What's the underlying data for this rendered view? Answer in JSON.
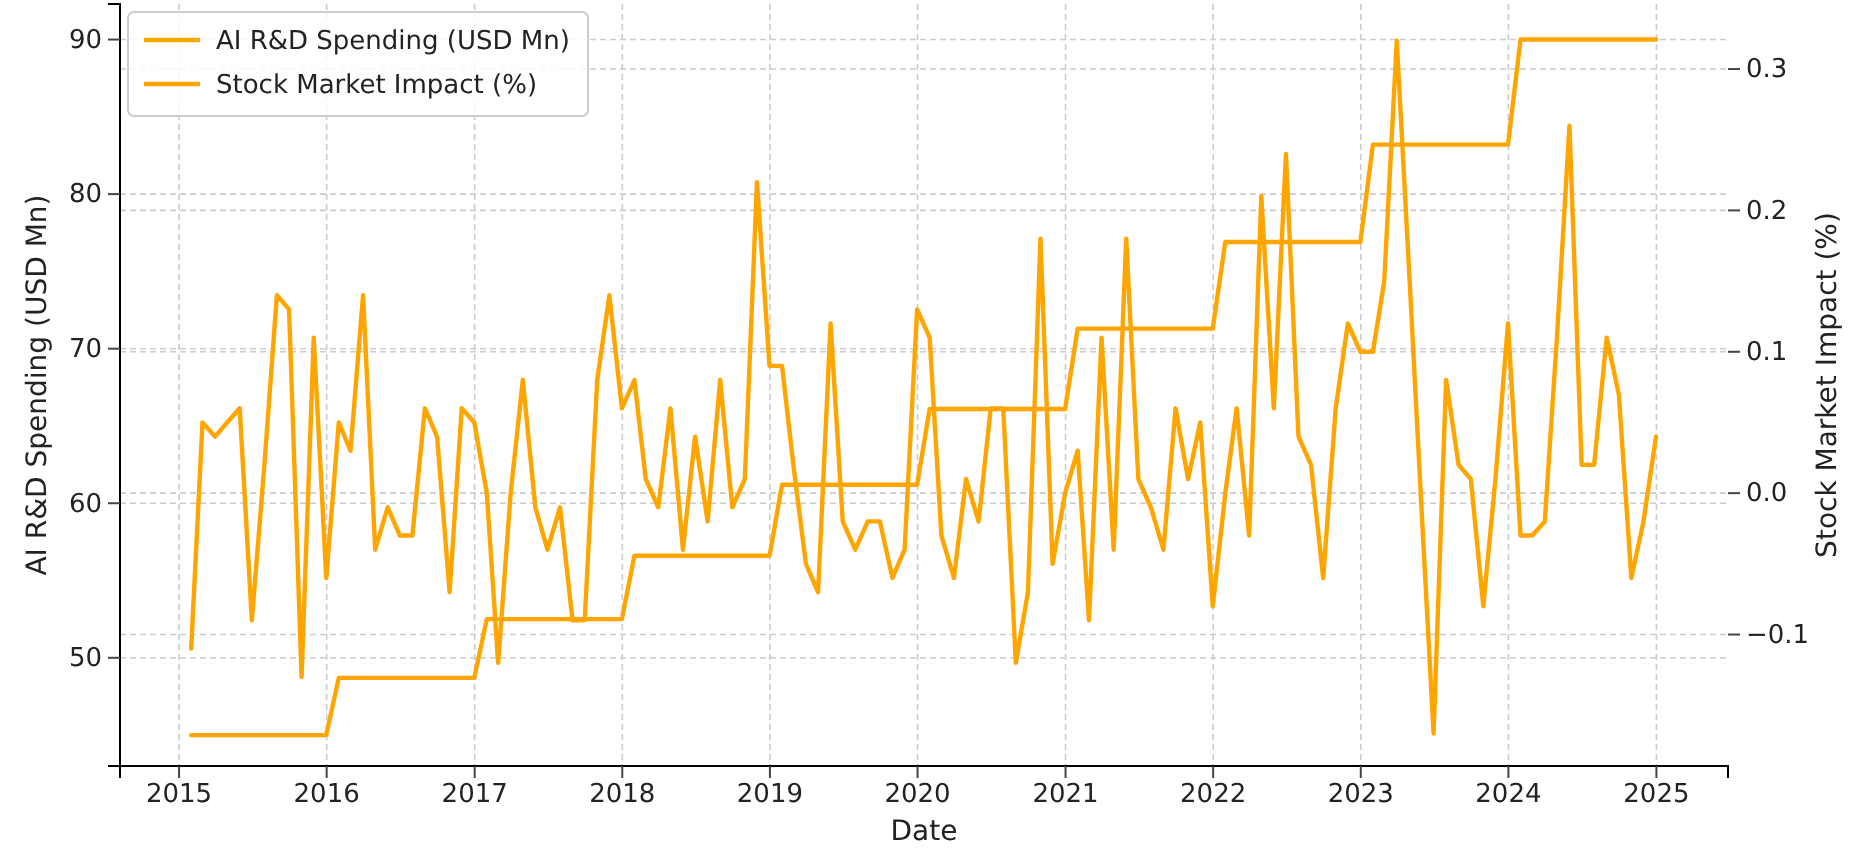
{
  "chart_data": {
    "type": "line",
    "xlabel": "Date",
    "ylabel": "AI R&D Spending (USD Mn)",
    "y2label": "Stock Market Impact (%)",
    "x": [
      "2015-01-31",
      "2015-02-28",
      "2015-03-31",
      "2015-04-30",
      "2015-05-31",
      "2015-06-30",
      "2015-07-31",
      "2015-08-31",
      "2015-09-30",
      "2015-10-31",
      "2015-11-30",
      "2015-12-31",
      "2016-01-31",
      "2016-02-29",
      "2016-03-31",
      "2016-04-30",
      "2016-05-31",
      "2016-06-30",
      "2016-07-31",
      "2016-08-31",
      "2016-09-30",
      "2016-10-31",
      "2016-11-30",
      "2016-12-31",
      "2017-01-31",
      "2017-02-28",
      "2017-03-31",
      "2017-04-30",
      "2017-05-31",
      "2017-06-30",
      "2017-07-31",
      "2017-08-31",
      "2017-09-30",
      "2017-10-31",
      "2017-11-30",
      "2017-12-31",
      "2018-01-31",
      "2018-02-28",
      "2018-03-31",
      "2018-04-30",
      "2018-05-31",
      "2018-06-30",
      "2018-07-31",
      "2018-08-31",
      "2018-09-30",
      "2018-10-31",
      "2018-11-30",
      "2018-12-31",
      "2019-01-31",
      "2019-02-28",
      "2019-03-31",
      "2019-04-30",
      "2019-05-31",
      "2019-06-30",
      "2019-07-31",
      "2019-08-31",
      "2019-09-30",
      "2019-10-31",
      "2019-11-30",
      "2019-12-31",
      "2020-01-31",
      "2020-02-29",
      "2020-03-31",
      "2020-04-30",
      "2020-05-31",
      "2020-06-30",
      "2020-07-31",
      "2020-08-31",
      "2020-09-30",
      "2020-10-31",
      "2020-11-30",
      "2020-12-31",
      "2021-01-31",
      "2021-02-28",
      "2021-03-31",
      "2021-04-30",
      "2021-05-31",
      "2021-06-30",
      "2021-07-31",
      "2021-08-31",
      "2021-09-30",
      "2021-10-31",
      "2021-11-30",
      "2021-12-31",
      "2022-01-31",
      "2022-02-28",
      "2022-03-31",
      "2022-04-30",
      "2022-05-31",
      "2022-06-30",
      "2022-07-31",
      "2022-08-31",
      "2022-09-30",
      "2022-10-31",
      "2022-11-30",
      "2022-12-31",
      "2023-01-31",
      "2023-02-28",
      "2023-03-31",
      "2023-04-30",
      "2023-05-31",
      "2023-06-30",
      "2023-07-31",
      "2023-08-31",
      "2023-09-30",
      "2023-10-31",
      "2023-11-30",
      "2023-12-31",
      "2024-01-31",
      "2024-02-29",
      "2024-03-31",
      "2024-04-30",
      "2024-05-31",
      "2024-06-30",
      "2024-07-31",
      "2024-08-31",
      "2024-09-30",
      "2024-10-31",
      "2024-11-30",
      "2024-12-31"
    ],
    "xlim": [
      "2014-08-08",
      "2025-06-27"
    ],
    "xticks": [
      "2015",
      "2016",
      "2017",
      "2018",
      "2019",
      "2020",
      "2021",
      "2022",
      "2023",
      "2024",
      "2025"
    ],
    "ylim": [
      43,
      92.3
    ],
    "yticks": [
      50,
      60,
      70,
      80,
      90
    ],
    "y2lim": [
      -0.193,
      0.346
    ],
    "y2ticks": [
      {
        "value": -0.1,
        "label": "−0.1"
      },
      {
        "value": 0,
        "label": "0.0"
      },
      0.1,
      0.2,
      0.3
    ],
    "grid": true,
    "legend": "top left",
    "line_style": "solid",
    "series": [
      {
        "name": "AI R&D Spending (USD Mn)",
        "color": "#ffa500",
        "values": [
          45.0,
          45.0,
          45.0,
          45.0,
          45.0,
          45.0,
          45.0,
          45.0,
          45.0,
          45.0,
          45.0,
          45.0,
          48.7,
          48.7,
          48.7,
          48.7,
          48.7,
          48.7,
          48.7,
          48.7,
          48.7,
          48.7,
          48.7,
          48.7,
          52.5,
          52.5,
          52.5,
          52.5,
          52.5,
          52.5,
          52.5,
          52.5,
          52.5,
          52.5,
          52.5,
          52.5,
          56.6,
          56.6,
          56.6,
          56.6,
          56.6,
          56.6,
          56.6,
          56.6,
          56.6,
          56.6,
          56.6,
          56.6,
          61.2,
          61.2,
          61.2,
          61.2,
          61.2,
          61.2,
          61.2,
          61.2,
          61.2,
          61.2,
          61.2,
          61.2,
          66.1,
          66.1,
          66.1,
          66.1,
          66.1,
          66.1,
          66.1,
          66.1,
          66.1,
          66.1,
          66.1,
          66.1,
          71.3,
          71.3,
          71.3,
          71.3,
          71.3,
          71.3,
          71.3,
          71.3,
          71.3,
          71.3,
          71.3,
          71.3,
          76.9,
          76.9,
          76.9,
          76.9,
          76.9,
          76.9,
          76.9,
          76.9,
          76.9,
          76.9,
          76.9,
          76.9,
          83.2,
          83.2,
          83.2,
          83.2,
          83.2,
          83.2,
          83.2,
          83.2,
          83.2,
          83.2,
          83.2,
          83.2,
          90.0,
          90.0,
          90.0,
          90.0,
          90.0,
          90.0,
          90.0,
          90.0,
          90.0,
          90.0,
          90.0,
          90.0
        ]
      },
      {
        "name": "Stock Market Impact (%)",
        "color": "#ffa500",
        "axis": "y2",
        "values": [
          -0.11,
          0.05,
          0.04,
          0.05,
          0.06,
          -0.09,
          0.02,
          0.14,
          0.13,
          -0.13,
          0.11,
          -0.06,
          0.05,
          0.03,
          0.14,
          -0.04,
          -0.01,
          -0.03,
          -0.03,
          0.06,
          0.04,
          -0.07,
          0.06,
          0.05,
          0.0,
          -0.12,
          0.0,
          0.08,
          -0.01,
          -0.04,
          -0.01,
          -0.09,
          -0.09,
          0.08,
          0.14,
          0.06,
          0.08,
          0.01,
          -0.01,
          0.06,
          -0.04,
          0.04,
          -0.02,
          0.08,
          -0.01,
          0.01,
          0.22,
          0.09,
          0.09,
          0.02,
          -0.05,
          -0.07,
          0.12,
          -0.02,
          -0.04,
          -0.02,
          -0.02,
          -0.06,
          -0.04,
          0.13,
          0.11,
          -0.03,
          -0.06,
          0.01,
          -0.02,
          0.06,
          0.06,
          -0.12,
          -0.07,
          0.18,
          -0.05,
          0.0,
          0.03,
          -0.09,
          0.11,
          -0.04,
          0.18,
          0.01,
          -0.01,
          -0.04,
          0.06,
          0.01,
          0.05,
          -0.08,
          0.0,
          0.06,
          -0.03,
          0.21,
          0.06,
          0.24,
          0.04,
          0.02,
          -0.06,
          0.06,
          0.12,
          0.1,
          0.1,
          0.15,
          0.32,
          0.16,
          -0.01,
          -0.17,
          0.08,
          0.02,
          0.01,
          -0.08,
          0.01,
          0.12,
          -0.03,
          -0.03,
          -0.02,
          0.11,
          0.26,
          0.02,
          0.02,
          0.11,
          0.07,
          -0.06,
          -0.02,
          0.04
        ]
      }
    ]
  }
}
